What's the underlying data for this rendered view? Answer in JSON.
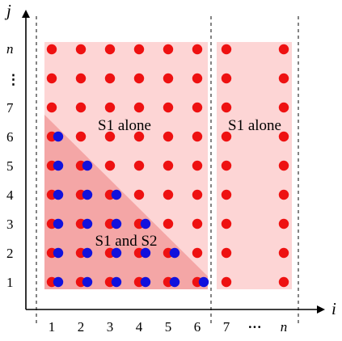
{
  "axes": {
    "x_label": "i",
    "y_label": "j",
    "x_ticks": [
      "1",
      "2",
      "3",
      "4",
      "5",
      "6",
      "7",
      "n"
    ],
    "x_ellipsis": "···",
    "y_ticks": [
      "1",
      "2",
      "3",
      "4",
      "5",
      "6",
      "7",
      "n"
    ],
    "y_ellipsis": "⋮"
  },
  "regions": {
    "s1_alone_left": "S1 alone",
    "s1_alone_right": "S1 alone",
    "s1_and_s2": "S1 and S2"
  },
  "colors": {
    "s1_dot": "#ee1111",
    "s2_dot": "#1111dd",
    "s1_region": "#fdd5d5",
    "s1s2_region": "#f4a6a6",
    "axis": "#000000"
  },
  "grid": {
    "columns_left_block": [
      1,
      2,
      3,
      4,
      5,
      6
    ],
    "columns_right_block": [
      7,
      "n"
    ],
    "rows": [
      1,
      2,
      3,
      4,
      5,
      6,
      7,
      "ellipsis",
      "n"
    ],
    "s2_rule": "S2 dot present where i + j <= 7 for columns 1..6"
  }
}
